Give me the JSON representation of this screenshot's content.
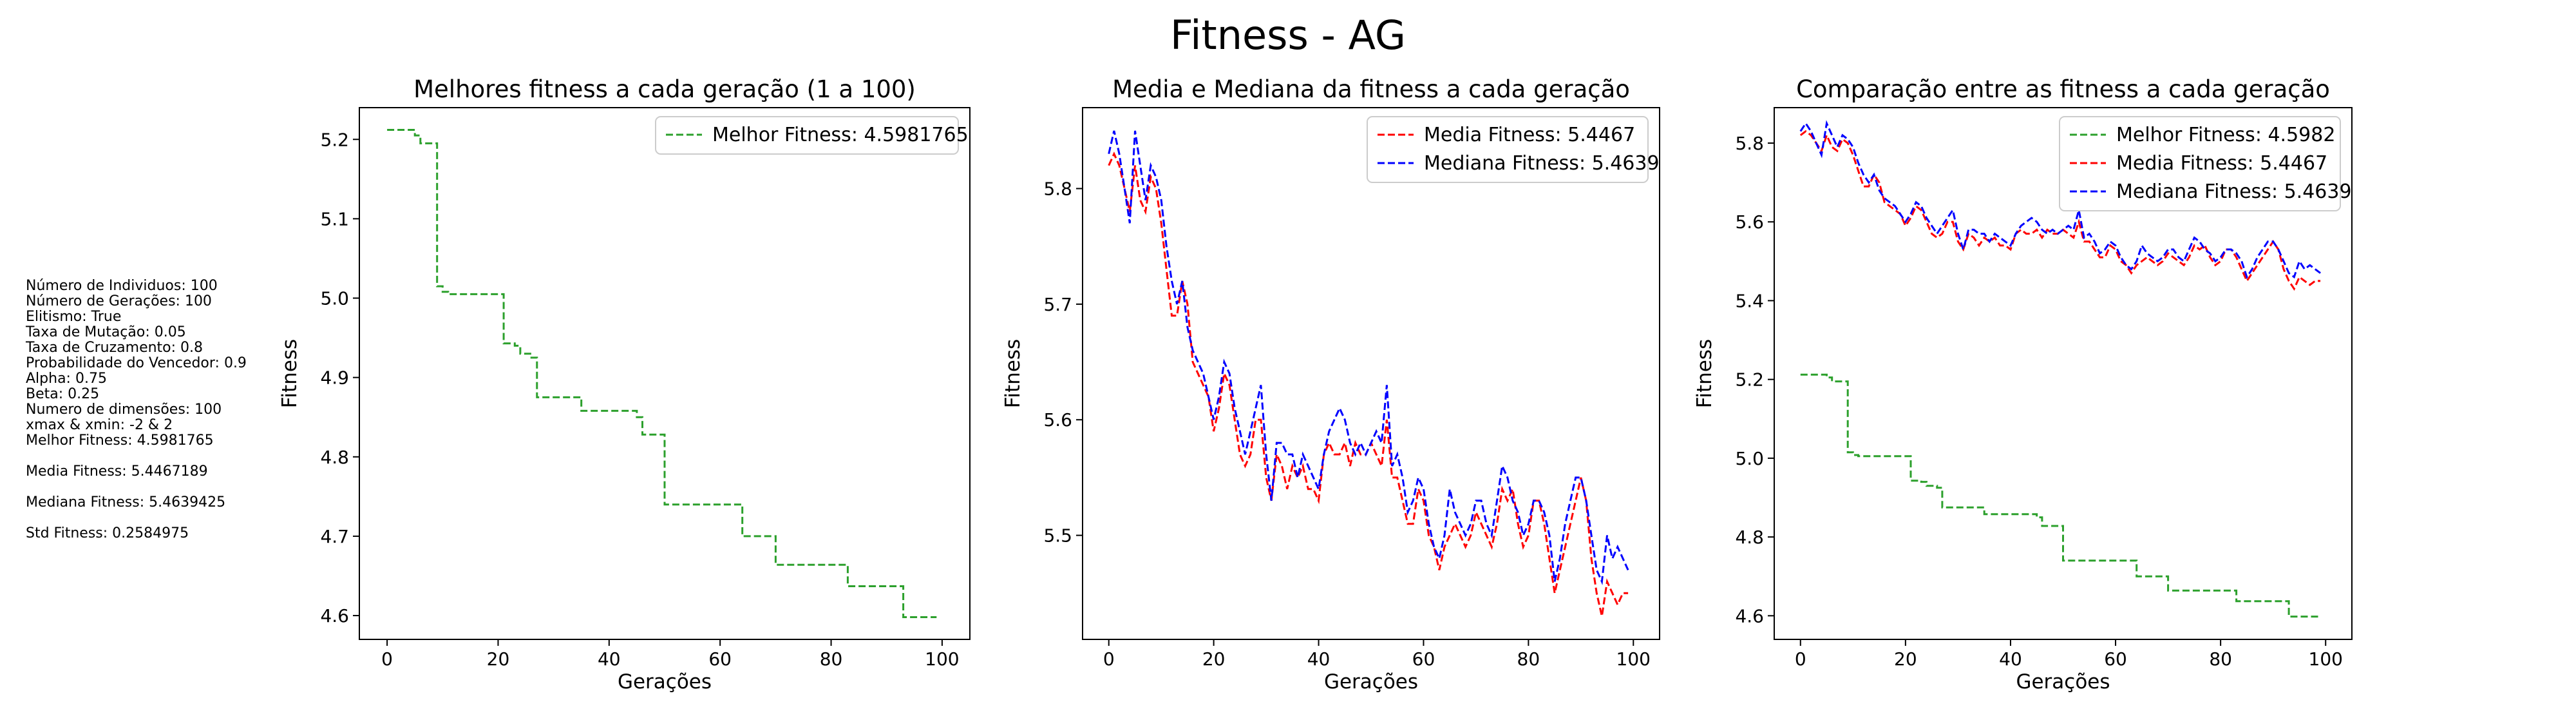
{
  "figure": {
    "title": "Fitness - AG",
    "params": [
      "Número de Individuos: 100",
      "Número de Gerações: 100",
      "Elitismo: True",
      "Taxa de Mutação: 0.05",
      "Taxa de Cruzamento: 0.8",
      "Probabilidade do Vencedor: 0.9",
      "Alpha: 0.75",
      "Beta: 0.25",
      "Numero de dimensões: 100",
      "xmax & xmin: -2 & 2",
      "Melhor Fitness: 4.5981765",
      "",
      "Media Fitness: 5.4467189",
      "",
      "Mediana Fitness: 5.4639425",
      "",
      "Std Fitness: 0.2584975"
    ]
  },
  "colors": {
    "best": "#2ca02c",
    "mean": "#ff0000",
    "median": "#0000ff"
  },
  "chart_data": [
    {
      "type": "line",
      "title": "Melhores fitness a cada geração (1 a 100)",
      "xlabel": "Gerações",
      "ylabel": "Fitness",
      "xlim": [
        -5,
        105
      ],
      "ylim": [
        4.57,
        5.24
      ],
      "xticks": [
        0,
        20,
        40,
        60,
        80,
        100
      ],
      "yticks": [
        4.6,
        4.7,
        4.8,
        4.9,
        5.0,
        5.1,
        5.2
      ],
      "legend": "top-right",
      "series": [
        {
          "name": "Melhor Fitness: 4.5981765",
          "color": "#2ca02c",
          "style": "dashed",
          "step": true,
          "points": [
            [
              0,
              5.212
            ],
            [
              4,
              5.212
            ],
            [
              5,
              5.205
            ],
            [
              6,
              5.195
            ],
            [
              8,
              5.195
            ],
            [
              9,
              5.015
            ],
            [
              10,
              5.008
            ],
            [
              11,
              5.005
            ],
            [
              20,
              5.005
            ],
            [
              21,
              4.943
            ],
            [
              23,
              4.94
            ],
            [
              24,
              4.93
            ],
            [
              26,
              4.925
            ],
            [
              27,
              4.875
            ],
            [
              34,
              4.875
            ],
            [
              35,
              4.858
            ],
            [
              44,
              4.858
            ],
            [
              45,
              4.85
            ],
            [
              46,
              4.828
            ],
            [
              49,
              4.828
            ],
            [
              50,
              4.74
            ],
            [
              63,
              4.74
            ],
            [
              64,
              4.7
            ],
            [
              69,
              4.7
            ],
            [
              70,
              4.664
            ],
            [
              82,
              4.664
            ],
            [
              83,
              4.637
            ],
            [
              92,
              4.637
            ],
            [
              93,
              4.598
            ],
            [
              99,
              4.598
            ]
          ]
        }
      ]
    },
    {
      "type": "line",
      "title": "Media e Mediana da fitness a cada geração",
      "xlabel": "Gerações",
      "ylabel": "Fitness",
      "xlim": [
        -5,
        105
      ],
      "ylim": [
        5.41,
        5.87
      ],
      "xticks": [
        0,
        20,
        40,
        60,
        80,
        100
      ],
      "yticks": [
        5.5,
        5.6,
        5.7,
        5.8
      ],
      "legend": "top-right",
      "series": [
        {
          "name": "Media Fitness: 5.4467",
          "color": "#ff0000",
          "style": "dashed",
          "points": [
            [
              0,
              5.82
            ],
            [
              1,
              5.83
            ],
            [
              2,
              5.82
            ],
            [
              3,
              5.8
            ],
            [
              4,
              5.78
            ],
            [
              5,
              5.82
            ],
            [
              6,
              5.79
            ],
            [
              7,
              5.78
            ],
            [
              8,
              5.81
            ],
            [
              9,
              5.8
            ],
            [
              10,
              5.77
            ],
            [
              11,
              5.73
            ],
            [
              12,
              5.69
            ],
            [
              13,
              5.69
            ],
            [
              14,
              5.72
            ],
            [
              15,
              5.7
            ],
            [
              16,
              5.65
            ],
            [
              17,
              5.64
            ],
            [
              18,
              5.63
            ],
            [
              19,
              5.62
            ],
            [
              20,
              5.59
            ],
            [
              21,
              5.61
            ],
            [
              22,
              5.64
            ],
            [
              23,
              5.63
            ],
            [
              24,
              5.6
            ],
            [
              25,
              5.57
            ],
            [
              26,
              5.56
            ],
            [
              27,
              5.57
            ],
            [
              28,
              5.6
            ],
            [
              29,
              5.6
            ],
            [
              30,
              5.55
            ],
            [
              31,
              5.53
            ],
            [
              32,
              5.57
            ],
            [
              33,
              5.56
            ],
            [
              34,
              5.54
            ],
            [
              35,
              5.56
            ],
            [
              36,
              5.55
            ],
            [
              37,
              5.56
            ],
            [
              38,
              5.54
            ],
            [
              39,
              5.54
            ],
            [
              40,
              5.53
            ],
            [
              41,
              5.57
            ],
            [
              42,
              5.58
            ],
            [
              43,
              5.57
            ],
            [
              44,
              5.57
            ],
            [
              45,
              5.58
            ],
            [
              46,
              5.56
            ],
            [
              47,
              5.58
            ],
            [
              48,
              5.57
            ],
            [
              49,
              5.57
            ],
            [
              50,
              5.58
            ],
            [
              51,
              5.57
            ],
            [
              52,
              5.56
            ],
            [
              53,
              5.6
            ],
            [
              54,
              5.55
            ],
            [
              55,
              5.55
            ],
            [
              56,
              5.53
            ],
            [
              57,
              5.51
            ],
            [
              58,
              5.51
            ],
            [
              59,
              5.54
            ],
            [
              60,
              5.53
            ],
            [
              61,
              5.5
            ],
            [
              62,
              5.49
            ],
            [
              63,
              5.47
            ],
            [
              64,
              5.49
            ],
            [
              65,
              5.5
            ],
            [
              66,
              5.51
            ],
            [
              67,
              5.5
            ],
            [
              68,
              5.49
            ],
            [
              69,
              5.5
            ],
            [
              70,
              5.52
            ],
            [
              71,
              5.51
            ],
            [
              72,
              5.5
            ],
            [
              73,
              5.49
            ],
            [
              74,
              5.51
            ],
            [
              75,
              5.54
            ],
            [
              76,
              5.53
            ],
            [
              77,
              5.54
            ],
            [
              78,
              5.51
            ],
            [
              79,
              5.49
            ],
            [
              80,
              5.5
            ],
            [
              81,
              5.53
            ],
            [
              82,
              5.53
            ],
            [
              83,
              5.51
            ],
            [
              84,
              5.48
            ],
            [
              85,
              5.45
            ],
            [
              86,
              5.47
            ],
            [
              87,
              5.49
            ],
            [
              88,
              5.51
            ],
            [
              89,
              5.53
            ],
            [
              90,
              5.55
            ],
            [
              91,
              5.53
            ],
            [
              92,
              5.48
            ],
            [
              93,
              5.45
            ],
            [
              94,
              5.43
            ],
            [
              95,
              5.46
            ],
            [
              96,
              5.45
            ],
            [
              97,
              5.44
            ],
            [
              98,
              5.45
            ],
            [
              99,
              5.45
            ]
          ]
        },
        {
          "name": "Mediana Fitness: 5.4639",
          "color": "#0000ff",
          "style": "dashed",
          "points": [
            [
              0,
              5.83
            ],
            [
              1,
              5.85
            ],
            [
              2,
              5.83
            ],
            [
              3,
              5.8
            ],
            [
              4,
              5.77
            ],
            [
              5,
              5.85
            ],
            [
              6,
              5.82
            ],
            [
              7,
              5.79
            ],
            [
              8,
              5.82
            ],
            [
              9,
              5.81
            ],
            [
              10,
              5.79
            ],
            [
              11,
              5.75
            ],
            [
              12,
              5.72
            ],
            [
              13,
              5.7
            ],
            [
              14,
              5.72
            ],
            [
              15,
              5.68
            ],
            [
              16,
              5.66
            ],
            [
              17,
              5.65
            ],
            [
              18,
              5.64
            ],
            [
              19,
              5.62
            ],
            [
              20,
              5.6
            ],
            [
              21,
              5.62
            ],
            [
              22,
              5.65
            ],
            [
              23,
              5.64
            ],
            [
              24,
              5.61
            ],
            [
              25,
              5.59
            ],
            [
              26,
              5.57
            ],
            [
              27,
              5.59
            ],
            [
              28,
              5.61
            ],
            [
              29,
              5.63
            ],
            [
              30,
              5.57
            ],
            [
              31,
              5.53
            ],
            [
              32,
              5.58
            ],
            [
              33,
              5.58
            ],
            [
              34,
              5.57
            ],
            [
              35,
              5.57
            ],
            [
              36,
              5.55
            ],
            [
              37,
              5.57
            ],
            [
              38,
              5.56
            ],
            [
              39,
              5.55
            ],
            [
              40,
              5.54
            ],
            [
              41,
              5.57
            ],
            [
              42,
              5.59
            ],
            [
              43,
              5.6
            ],
            [
              44,
              5.61
            ],
            [
              45,
              5.6
            ],
            [
              46,
              5.58
            ],
            [
              47,
              5.57
            ],
            [
              48,
              5.58
            ],
            [
              49,
              5.57
            ],
            [
              50,
              5.58
            ],
            [
              51,
              5.59
            ],
            [
              52,
              5.58
            ],
            [
              53,
              5.63
            ],
            [
              54,
              5.56
            ],
            [
              55,
              5.57
            ],
            [
              56,
              5.55
            ],
            [
              57,
              5.52
            ],
            [
              58,
              5.53
            ],
            [
              59,
              5.55
            ],
            [
              60,
              5.54
            ],
            [
              61,
              5.51
            ],
            [
              62,
              5.49
            ],
            [
              63,
              5.48
            ],
            [
              64,
              5.5
            ],
            [
              65,
              5.54
            ],
            [
              66,
              5.52
            ],
            [
              67,
              5.51
            ],
            [
              68,
              5.5
            ],
            [
              69,
              5.51
            ],
            [
              70,
              5.53
            ],
            [
              71,
              5.53
            ],
            [
              72,
              5.51
            ],
            [
              73,
              5.5
            ],
            [
              74,
              5.53
            ],
            [
              75,
              5.56
            ],
            [
              76,
              5.55
            ],
            [
              77,
              5.53
            ],
            [
              78,
              5.52
            ],
            [
              79,
              5.5
            ],
            [
              80,
              5.51
            ],
            [
              81,
              5.53
            ],
            [
              82,
              5.53
            ],
            [
              83,
              5.52
            ],
            [
              84,
              5.5
            ],
            [
              85,
              5.46
            ],
            [
              86,
              5.48
            ],
            [
              87,
              5.51
            ],
            [
              88,
              5.53
            ],
            [
              89,
              5.55
            ],
            [
              90,
              5.55
            ],
            [
              91,
              5.53
            ],
            [
              92,
              5.5
            ],
            [
              93,
              5.47
            ],
            [
              94,
              5.46
            ],
            [
              95,
              5.5
            ],
            [
              96,
              5.48
            ],
            [
              97,
              5.49
            ],
            [
              98,
              5.48
            ],
            [
              99,
              5.47
            ]
          ]
        }
      ]
    },
    {
      "type": "line",
      "title": "Comparação entre as fitness a cada geração",
      "xlabel": "Gerações",
      "ylabel": "Fitness",
      "xlim": [
        -5,
        105
      ],
      "ylim": [
        4.54,
        5.89
      ],
      "xticks": [
        0,
        20,
        40,
        60,
        80,
        100
      ],
      "yticks": [
        4.6,
        4.8,
        5.0,
        5.2,
        5.4,
        5.6,
        5.8
      ],
      "legend": "top-right",
      "series": [
        {
          "name": "Melhor Fitness: 4.5982",
          "ref": 0
        },
        {
          "name": "Media Fitness: 5.4467",
          "ref": 1
        },
        {
          "name": "Mediana Fitness: 5.4639",
          "ref": 2
        }
      ]
    }
  ]
}
